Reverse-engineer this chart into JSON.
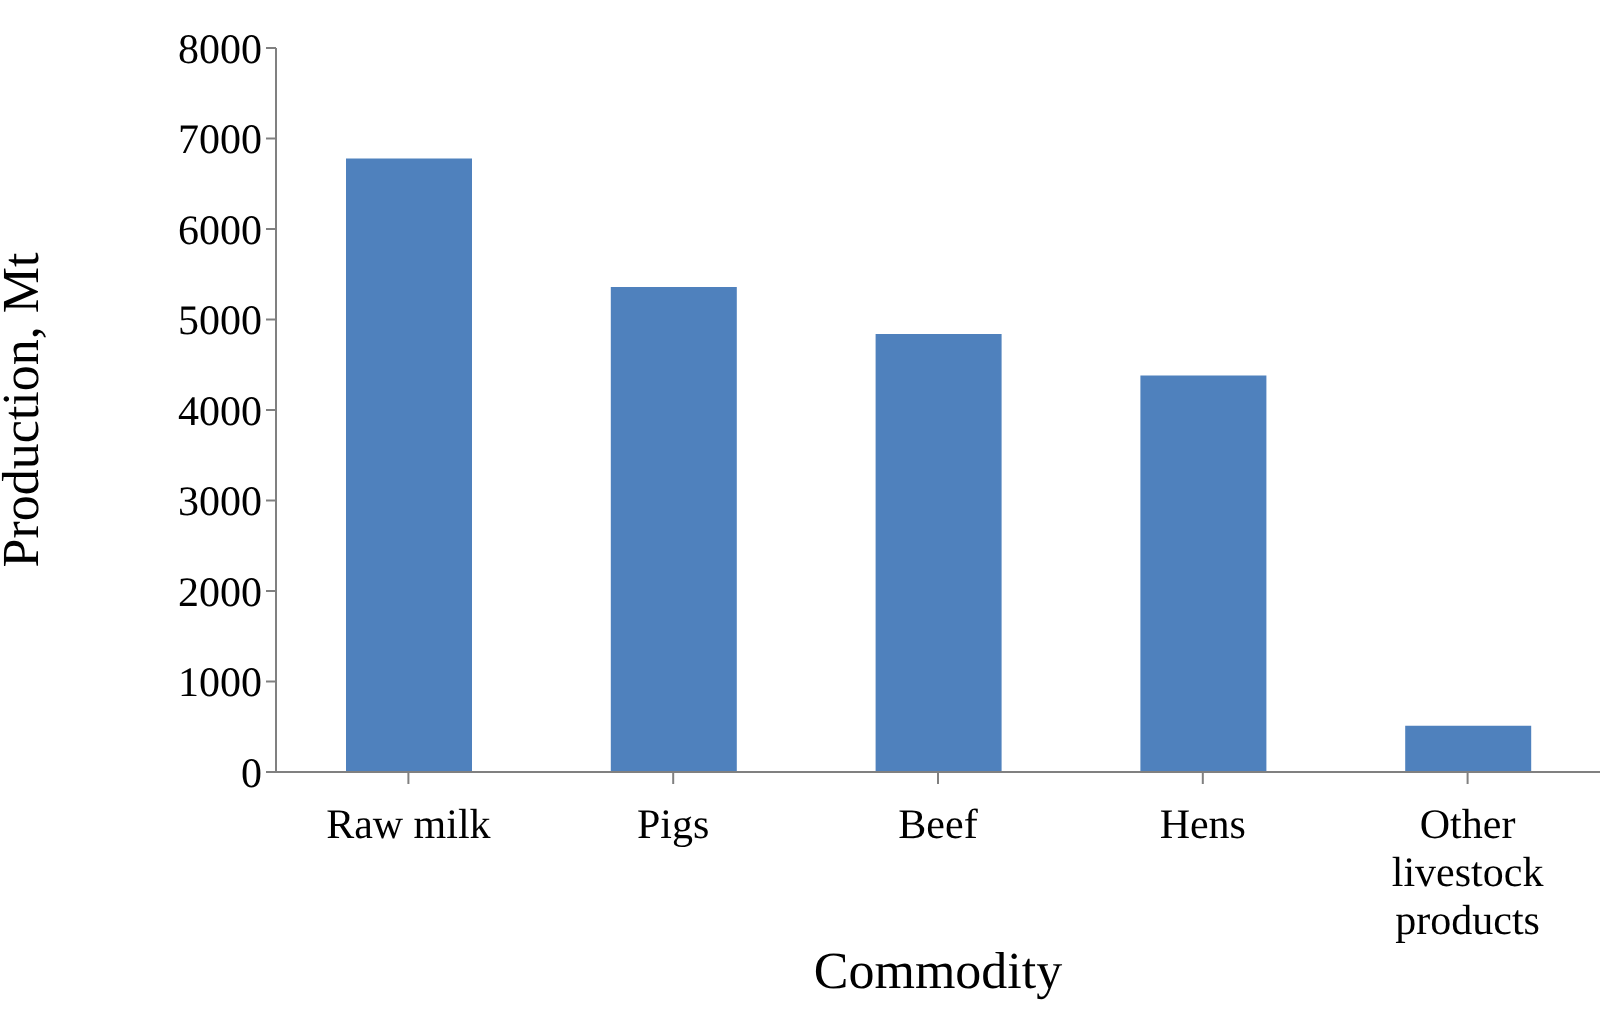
{
  "chart_data": {
    "type": "bar",
    "xlabel": "Commodity",
    "ylabel": "Production, Mt",
    "categories": [
      "Raw milk",
      "Pigs",
      "Beef",
      "Hens",
      "Other livestock products"
    ],
    "values": [
      6780,
      5360,
      4840,
      4380,
      510
    ],
    "color": "#4f81bd",
    "ylim": [
      0,
      8000
    ],
    "yticks": [
      0,
      1000,
      2000,
      3000,
      4000,
      5000,
      6000,
      7000,
      8000
    ],
    "grid": false,
    "legend": false
  }
}
